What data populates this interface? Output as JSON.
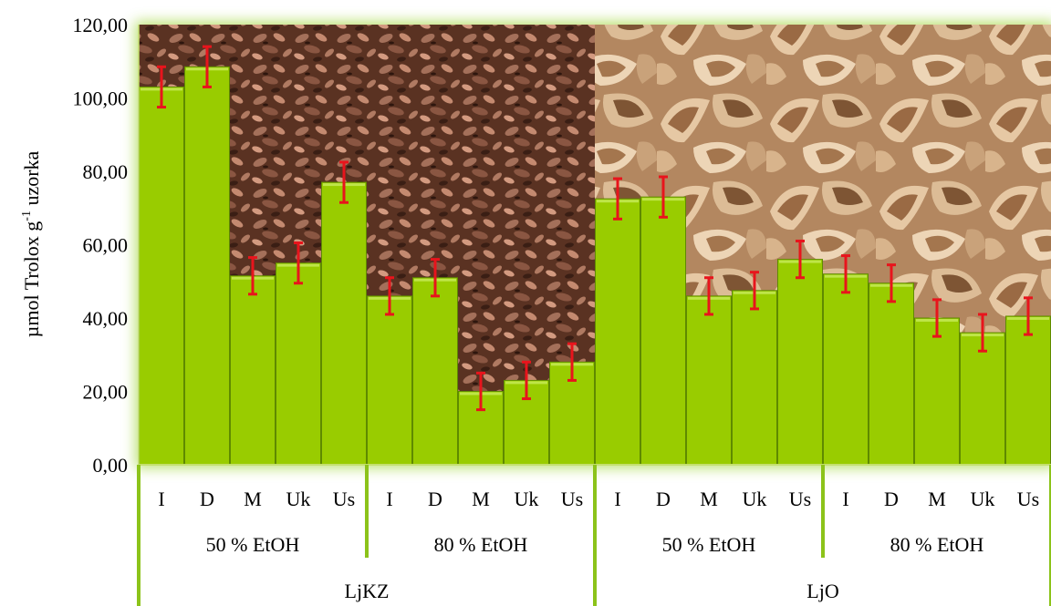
{
  "chart_data": {
    "type": "bar",
    "ylabel": "µmol Trolox g-1 uzorka",
    "ylabel_main": "µmol Trolox g",
    "ylabel_sup": "-1",
    "ylabel_tail": " uzorka",
    "ylim": [
      0,
      120
    ],
    "yticks": [
      "0,00",
      "20,00",
      "40,00",
      "60,00",
      "80,00",
      "100,00",
      "120,00"
    ],
    "ytick_values": [
      0,
      20,
      40,
      60,
      80,
      100,
      120
    ],
    "categories": [
      "I",
      "D",
      "M",
      "Uk",
      "Us",
      "I",
      "D",
      "M",
      "Uk",
      "Us",
      "I",
      "D",
      "M",
      "Uk",
      "Us",
      "I",
      "D",
      "M",
      "Uk",
      "Us"
    ],
    "values": [
      103,
      108.5,
      51.5,
      55,
      77,
      46,
      51,
      20,
      23,
      28,
      72.5,
      73,
      46,
      47.5,
      56,
      52,
      49.5,
      40,
      36,
      40.5
    ],
    "errors": [
      5.5,
      5.5,
      5,
      5.5,
      5.5,
      5,
      5,
      5,
      5,
      5,
      5.5,
      5.5,
      5,
      5,
      5,
      5,
      5,
      5,
      5,
      5
    ],
    "solvent_groups": [
      "50 % EtOH",
      "80 % EtOH",
      "50 % EtOH",
      "80 % EtOH"
    ],
    "sample_groups": [
      "LjKZ",
      "LjO"
    ],
    "grid": false,
    "legend": "none",
    "colors": {
      "bar": "#99cc00",
      "bar_edge": "#5f8a00",
      "error": "#e8141c",
      "glow": "#b8e06a",
      "separator": "#8cc31a",
      "axis": "#c4e070"
    }
  }
}
